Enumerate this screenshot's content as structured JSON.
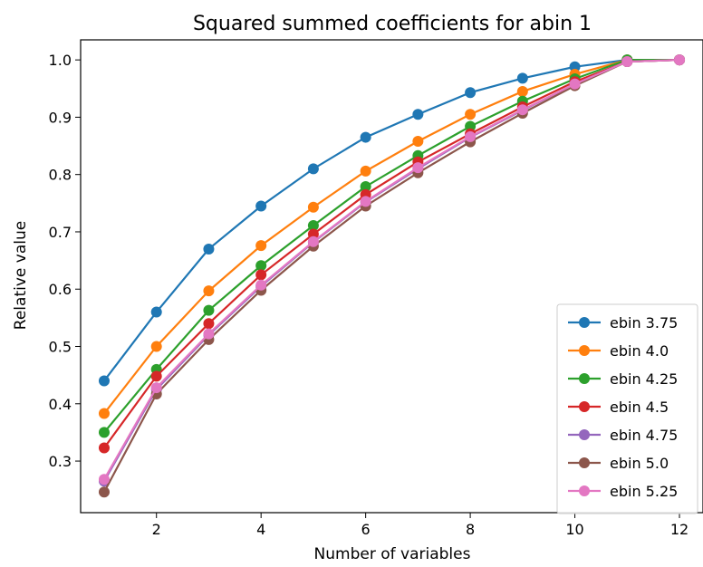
{
  "chart_data": {
    "type": "line",
    "title": "Squared summed coefficients for abin 1",
    "xlabel": "Number of variables",
    "ylabel": "Relative value",
    "xlim": [
      0.55,
      12.45
    ],
    "ylim": [
      0.21,
      1.035
    ],
    "x_ticks": [
      2,
      4,
      6,
      8,
      10,
      12
    ],
    "y_ticks": [
      0.3,
      0.4,
      0.5,
      0.6,
      0.7,
      0.8,
      0.9,
      1.0
    ],
    "x_tick_labels": [
      "2",
      "4",
      "6",
      "8",
      "10",
      "12"
    ],
    "y_tick_labels": [
      "0.3",
      "0.4",
      "0.5",
      "0.6",
      "0.7",
      "0.8",
      "0.9",
      "1.0"
    ],
    "grid": false,
    "legend_position": "lower-right",
    "x": [
      1,
      2,
      3,
      4,
      5,
      6,
      7,
      8,
      9,
      10,
      11,
      12
    ],
    "series": [
      {
        "name": "ebin 3.75",
        "color": "#1f77b4",
        "values": [
          0.44,
          0.56,
          0.67,
          0.745,
          0.81,
          0.865,
          0.905,
          0.943,
          0.968,
          0.988,
          1.0,
          1.0
        ]
      },
      {
        "name": "ebin 4.0",
        "color": "#ff7f0e",
        "values": [
          0.383,
          0.5,
          0.597,
          0.676,
          0.743,
          0.806,
          0.858,
          0.905,
          0.945,
          0.975,
          1.0,
          1.0
        ]
      },
      {
        "name": "ebin 4.25",
        "color": "#2ca02c",
        "values": [
          0.35,
          0.46,
          0.563,
          0.641,
          0.711,
          0.779,
          0.833,
          0.884,
          0.928,
          0.967,
          1.0,
          1.0
        ]
      },
      {
        "name": "ebin 4.5",
        "color": "#d62728",
        "values": [
          0.323,
          0.448,
          0.54,
          0.625,
          0.696,
          0.765,
          0.822,
          0.871,
          0.918,
          0.962,
          0.997,
          1.0
        ]
      },
      {
        "name": "ebin 4.75",
        "color": "#9467bd",
        "values": [
          0.265,
          0.425,
          0.52,
          0.605,
          0.682,
          0.752,
          0.81,
          0.865,
          0.912,
          0.958,
          0.997,
          1.0
        ]
      },
      {
        "name": "ebin 5.0",
        "color": "#8c564b",
        "values": [
          0.246,
          0.417,
          0.512,
          0.598,
          0.675,
          0.745,
          0.803,
          0.857,
          0.907,
          0.955,
          0.997,
          1.0
        ]
      },
      {
        "name": "ebin 5.25",
        "color": "#e377c2",
        "values": [
          0.268,
          0.428,
          0.522,
          0.607,
          0.683,
          0.753,
          0.812,
          0.866,
          0.913,
          0.958,
          0.997,
          1.0
        ]
      }
    ]
  }
}
